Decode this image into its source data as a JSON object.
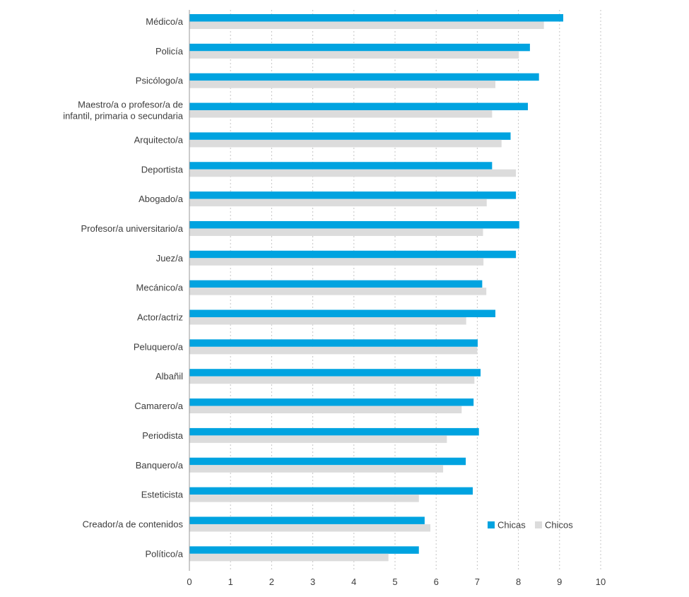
{
  "chart_data": {
    "type": "bar",
    "orientation": "horizontal",
    "title": "",
    "xlabel": "",
    "ylabel": "",
    "xlim": [
      0,
      10
    ],
    "xticks": [
      "0",
      "1",
      "2",
      "3",
      "4",
      "5",
      "6",
      "7",
      "8",
      "9",
      "10"
    ],
    "grid": "vertical dotted",
    "legend_position": "bottom-right",
    "categories": [
      [
        "Médico/a"
      ],
      [
        "Policía"
      ],
      [
        "Psicólogo/a"
      ],
      [
        "Maestro/a o profesor/a de",
        "infantil, primaria o secundaria"
      ],
      [
        "Arquitecto/a"
      ],
      [
        "Deportista"
      ],
      [
        "Abogado/a"
      ],
      [
        "Profesor/a universitario/a"
      ],
      [
        "Juez/a"
      ],
      [
        "Mecánico/a"
      ],
      [
        "Actor/actriz"
      ],
      [
        "Peluquero/a"
      ],
      [
        "Albañil"
      ],
      [
        "Camarero/a"
      ],
      [
        "Periodista"
      ],
      [
        "Banquero/a"
      ],
      [
        "Esteticista"
      ],
      [
        "Creador/a de contenidos"
      ],
      [
        "Político/a"
      ]
    ],
    "series": [
      {
        "name": "Chicas",
        "color": "#00a3e0",
        "values": [
          9.09,
          8.28,
          8.5,
          8.23,
          7.81,
          7.36,
          7.94,
          8.02,
          7.94,
          7.12,
          7.44,
          7.01,
          7.08,
          6.91,
          7.04,
          6.72,
          6.89,
          5.72,
          5.58
        ]
      },
      {
        "name": "Chicos",
        "color": "#dcdcdc",
        "values": [
          8.62,
          8.01,
          7.44,
          7.36,
          7.59,
          7.94,
          7.23,
          7.14,
          7.15,
          7.22,
          6.73,
          7.0,
          6.93,
          6.62,
          6.26,
          6.17,
          5.58,
          5.86,
          4.84
        ]
      }
    ]
  }
}
